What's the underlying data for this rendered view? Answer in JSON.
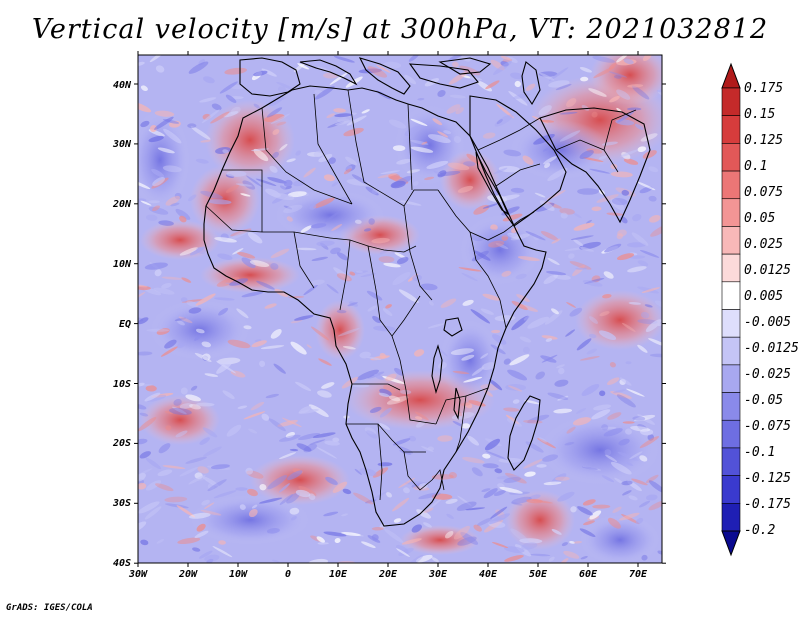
{
  "title": "Vertical velocity [m/s] at 300hPa, VT: 2021032812",
  "credit": "GrADS: IGES/COLA",
  "map": {
    "lon_labels": [
      "30W",
      "20W",
      "10W",
      "0",
      "10E",
      "20E",
      "30E",
      "40E",
      "50E",
      "60E",
      "70E"
    ],
    "lat_labels": [
      "40N",
      "30N",
      "20N",
      "10N",
      "EQ",
      "10S",
      "20S",
      "30S",
      "40S"
    ]
  },
  "colorbar": {
    "levels": [
      "0.175",
      "0.15",
      "0.125",
      "0.1",
      "0.075",
      "0.05",
      "0.025",
      "0.0125",
      "0.005",
      "-0.005",
      "-0.0125",
      "-0.025",
      "-0.05",
      "-0.075",
      "-0.1",
      "-0.125",
      "-0.175",
      "-0.2"
    ],
    "colors": [
      "#b01a1a",
      "#c42a2a",
      "#d63c3c",
      "#e25858",
      "#ec7676",
      "#f39595",
      "#f8b8b8",
      "#fcdada",
      "#ffffff",
      "#dedefc",
      "#c4c4f6",
      "#a8a8f0",
      "#8a8aea",
      "#6e6ee2",
      "#5252d8",
      "#3a3ace",
      "#1f1fb4",
      "#0a0a90"
    ]
  }
}
